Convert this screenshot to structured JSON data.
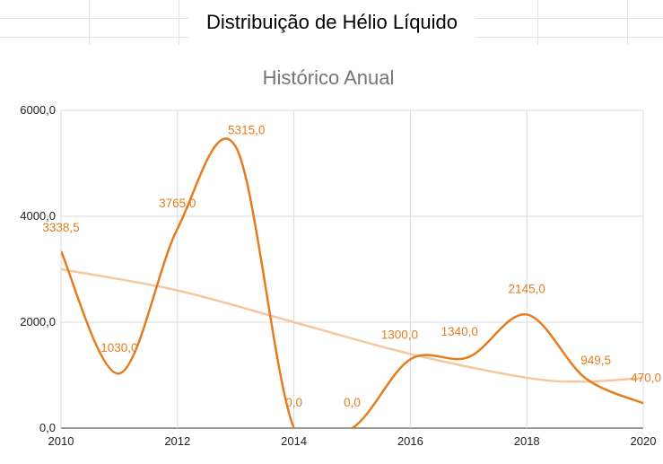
{
  "sheet": {
    "title": "Distribuição de Hélio Líquido"
  },
  "colors": {
    "series": "#e67c1f",
    "trendline": "#f4c8a0",
    "grid": "#d9d9d9",
    "title": "#757575"
  },
  "chart_data": {
    "type": "line",
    "title": "Histórico Anual",
    "xlabel": "",
    "ylabel": "",
    "smooth": true,
    "grid": true,
    "legend": "none",
    "xlim": [
      2010,
      2020
    ],
    "ylim": [
      0,
      6000
    ],
    "x_ticks": [
      "2010",
      "2012",
      "2014",
      "2016",
      "2018",
      "2020"
    ],
    "y_ticks": [
      "0,0",
      "2000,0",
      "4000,0",
      "6000,0"
    ],
    "series": [
      {
        "x": [
          2010,
          2011,
          2012,
          2013,
          2014,
          2015,
          2016,
          2017,
          2018,
          2019,
          2020
        ],
        "values": [
          3338.5,
          1030.0,
          3765.0,
          5315.0,
          0.0,
          0.0,
          1300.0,
          1340.0,
          2145.0,
          949.5,
          470.0
        ],
        "labels": [
          "3338,5",
          "1030,0",
          "3765,0",
          "5315,0",
          "0,0",
          "0,0",
          "1300,0",
          "1340,0",
          "2145,0",
          "949,5",
          "470,0"
        ]
      }
    ],
    "trendline": {
      "type": "polynomial",
      "points": [
        [
          2010,
          3000
        ],
        [
          2012,
          2600
        ],
        [
          2014,
          2000
        ],
        [
          2016,
          1400
        ],
        [
          2018,
          950
        ],
        [
          2019,
          880
        ],
        [
          2020,
          950
        ]
      ]
    }
  }
}
